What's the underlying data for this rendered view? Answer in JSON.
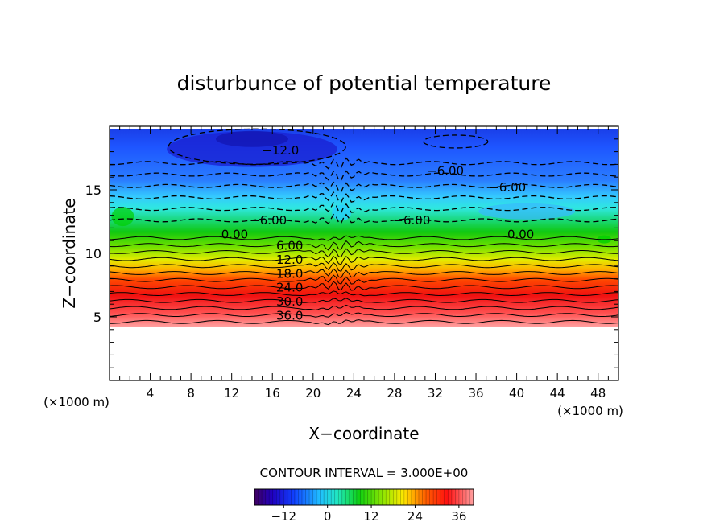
{
  "chart_data": {
    "type": "heatmap",
    "title": "disturbunce of potential temperature",
    "xlabel": "X−coordinate",
    "ylabel": "Z−coordinate",
    "x_unit_label": "(×1000 m)",
    "xlim": [
      0,
      50
    ],
    "ylim": [
      0,
      20
    ],
    "x_ticks": [
      4,
      8,
      12,
      16,
      20,
      24,
      28,
      32,
      36,
      40,
      44,
      48
    ],
    "y_ticks": [
      5,
      10,
      15
    ],
    "contour_interval_text": "CONTOUR INTERVAL = 3.000E+00",
    "colorbar": {
      "range": [
        -20,
        40
      ],
      "ticks": [
        -12,
        0,
        12,
        24,
        36
      ],
      "tick_labels": [
        "−12",
        "0",
        "12",
        "24",
        "36"
      ]
    },
    "ground_top_km": 4.2,
    "field_top_km": 19.8,
    "contour_labels": [
      {
        "text": "−12.0",
        "x": 16.8,
        "z": 18.1
      },
      {
        "text": "−6.00",
        "x": 33.0,
        "z": 16.5
      },
      {
        "text": "−6.00",
        "x": 39.1,
        "z": 15.2
      },
      {
        "text": "−6.00",
        "x": 15.6,
        "z": 12.6
      },
      {
        "text": "−6.00",
        "x": 29.7,
        "z": 12.6
      },
      {
        "text": "0.00",
        "x": 12.3,
        "z": 11.5
      },
      {
        "text": "0.00",
        "x": 40.4,
        "z": 11.5
      },
      {
        "text": "6.00",
        "x": 17.7,
        "z": 10.6
      },
      {
        "text": "12.0",
        "x": 17.7,
        "z": 9.5
      },
      {
        "text": "18.0",
        "x": 17.7,
        "z": 8.4
      },
      {
        "text": "24.0",
        "x": 17.7,
        "z": 7.3
      },
      {
        "text": "30.0",
        "x": 17.7,
        "z": 6.2
      },
      {
        "text": "36.0",
        "x": 17.7,
        "z": 5.1
      }
    ],
    "colors": {
      "deep_blue": "#1a1fd0",
      "blue": "#1e5cff",
      "cyan": "#28d0ff",
      "green": "#00d000",
      "yellow": "#ffee00",
      "red": "#ff1a00",
      "pink": "#ff8080"
    }
  }
}
